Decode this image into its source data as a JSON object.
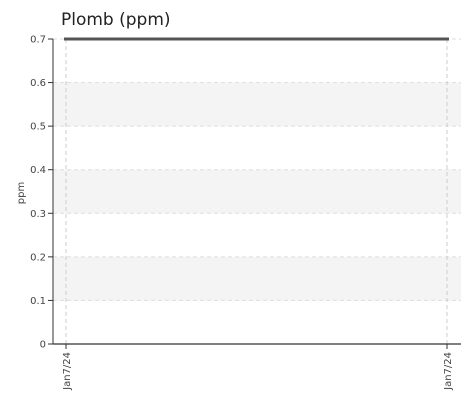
{
  "chart_data": {
    "type": "line",
    "title": "Plomb (ppm)",
    "ylabel": "ppm",
    "xlabel": "",
    "ylim": [
      0,
      0.7
    ],
    "y_ticks": [
      "0",
      "0.1",
      "0.2",
      "0.3",
      "0.4",
      "0.5",
      "0.6",
      "0.7"
    ],
    "x_ticks": [
      "Jan7/24",
      "Jan7/24"
    ],
    "grid": true,
    "series": [
      {
        "values": [
          0.7,
          0.7
        ],
        "color": "#555555"
      }
    ]
  }
}
